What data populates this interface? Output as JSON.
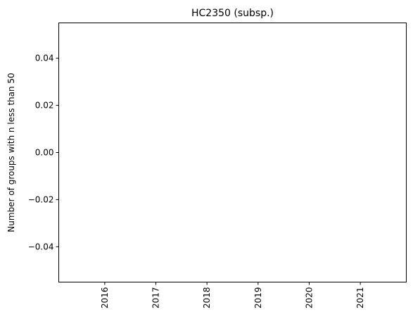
{
  "chart_data": {
    "type": "bar",
    "title": "HC2350 (subsp.)",
    "xlabel": "",
    "ylabel": "Number of groups with n less than 50",
    "categories": [
      "2016",
      "2017",
      "2018",
      "2019",
      "2020",
      "2021"
    ],
    "values": [
      0,
      0,
      0,
      0,
      0,
      0
    ],
    "ylim": [
      -0.055,
      0.055
    ],
    "yticks": [
      -0.04,
      -0.02,
      0.0,
      0.02,
      0.04
    ],
    "ytick_labels": [
      "−0.04",
      "−0.02",
      "0.00",
      "0.02",
      "0.04"
    ],
    "grid": false,
    "legend": "none"
  }
}
